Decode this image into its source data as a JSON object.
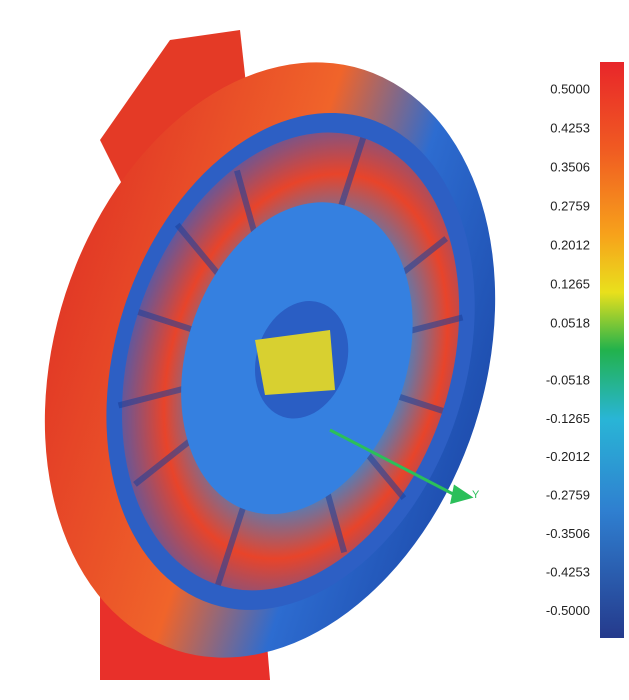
{
  "legend": {
    "labels": [
      "0.5000",
      "0.4253",
      "0.3506",
      "0.2759",
      "0.2012",
      "0.1265",
      "0.0518",
      "-0.0518",
      "-0.1265",
      "-0.2012",
      "-0.2759",
      "-0.3506",
      "-0.4253",
      "-0.5000"
    ]
  },
  "axis_label": "Y"
}
